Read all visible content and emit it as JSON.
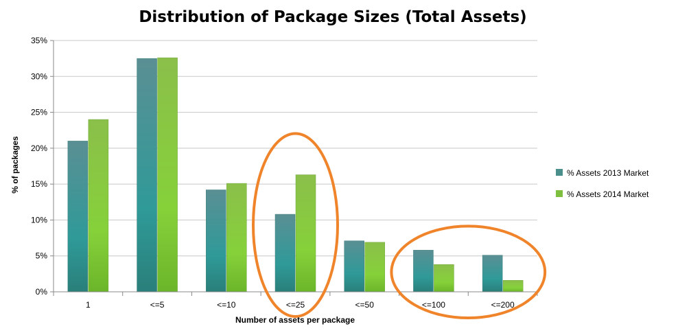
{
  "chart_data": {
    "type": "bar",
    "title": "Distribution of Package Sizes (Total Assets)",
    "xlabel": "Number of assets per package",
    "ylabel": "% of packages",
    "categories": [
      "1",
      "<=5",
      "<=10",
      "<=25",
      "<=50",
      "<=100",
      "<=200"
    ],
    "series": [
      {
        "name": "% Assets 2013 Market",
        "values": [
          21.0,
          32.5,
          14.2,
          10.8,
          7.1,
          5.8,
          5.1
        ],
        "color": "#4a8f8c"
      },
      {
        "name": "% Assets 2014 Market",
        "values": [
          24.0,
          32.6,
          15.1,
          16.3,
          6.9,
          3.8,
          1.6
        ],
        "color": "#7fbf3f"
      }
    ],
    "ylim": [
      0,
      35
    ],
    "yticks": [
      0,
      5,
      10,
      15,
      20,
      25,
      30,
      35
    ],
    "ytick_labels": [
      "0%",
      "5%",
      "10%",
      "15%",
      "20%",
      "25%",
      "30%",
      "35%"
    ],
    "grid": true,
    "legend_position": "right",
    "annotations": [
      {
        "shape": "ellipse",
        "highlights": [
          "<=25"
        ],
        "color": "#f0842b"
      },
      {
        "shape": "ellipse",
        "highlights": [
          "<=100",
          "<=200"
        ],
        "color": "#f0842b"
      }
    ]
  }
}
